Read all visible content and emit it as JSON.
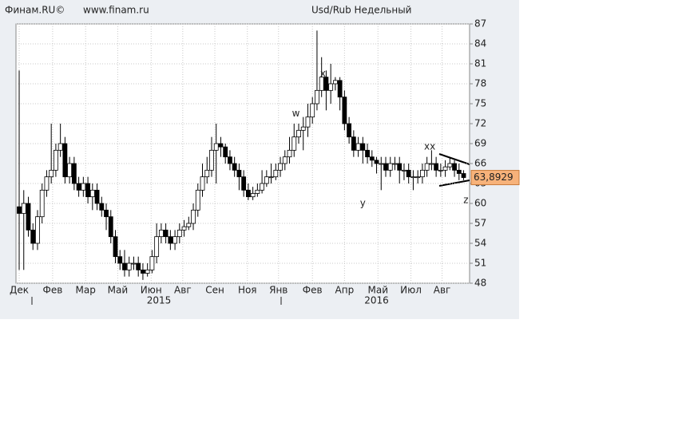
{
  "chart_data": {
    "type": "candlestick",
    "title": "Usd/Rub Недельный",
    "brand": "Финам.RU©",
    "site": "www.finam.ru",
    "series": [
      {
        "open": [
          59.5,
          58.5,
          60,
          56,
          54,
          58,
          62,
          64,
          65,
          68,
          69,
          64,
          66,
          63,
          62,
          63,
          61,
          62,
          60,
          59,
          58,
          55,
          52,
          51,
          50,
          51,
          51,
          50,
          49.5,
          50,
          52,
          55,
          56,
          55,
          54,
          55,
          56,
          56.5,
          57,
          59,
          62,
          64,
          65,
          68,
          69,
          68.5,
          67,
          66,
          65,
          64,
          62,
          61,
          61.5,
          62,
          63,
          64,
          64,
          65,
          66,
          67,
          68,
          70,
          71,
          71.5,
          73,
          75,
          77,
          79,
          77,
          78,
          78.5,
          76,
          72,
          70,
          68,
          69,
          68,
          67,
          66.5,
          66,
          66,
          65,
          66,
          66,
          65,
          65,
          64,
          64,
          64,
          65,
          66,
          66,
          65,
          65,
          65.5,
          66,
          65,
          64.5
        ],
        "high": [
          80,
          62,
          61,
          57,
          59,
          63,
          65,
          72,
          69,
          72,
          70,
          67,
          67,
          64,
          64,
          64,
          63,
          63,
          61,
          60,
          59,
          56,
          53,
          53,
          52,
          52,
          52,
          51,
          51,
          53,
          57,
          57,
          57,
          56,
          56,
          57,
          57.5,
          58,
          60,
          63,
          66,
          67,
          70,
          72,
          70,
          69,
          68,
          67,
          66,
          65,
          63,
          62.5,
          63,
          65,
          65,
          66,
          66,
          67,
          68,
          70,
          72,
          72,
          73,
          75,
          76,
          86,
          82,
          80,
          81,
          79,
          79,
          77,
          73,
          71,
          70,
          70,
          69,
          68,
          67,
          67,
          67,
          67,
          67,
          67,
          66,
          66,
          65,
          65,
          66,
          67,
          68,
          67,
          66,
          66.5,
          67,
          66.5,
          66,
          65
        ],
        "low": [
          50,
          50,
          55,
          53,
          53,
          57,
          61,
          63,
          64,
          67,
          63,
          63,
          62,
          61,
          61,
          60,
          59,
          59,
          58,
          56,
          54,
          51,
          50,
          49,
          49,
          50,
          49,
          48.5,
          49,
          49.5,
          51,
          54,
          54,
          53,
          53,
          54,
          55,
          56,
          56,
          58,
          61,
          63,
          64,
          63,
          67,
          66,
          65,
          64,
          62,
          61,
          60.5,
          60.5,
          61,
          61.5,
          62.5,
          63,
          63.5,
          64,
          65,
          66,
          67,
          69,
          68,
          70,
          72,
          74,
          76,
          74,
          75,
          77,
          74,
          71,
          69,
          67,
          67,
          66,
          66,
          65.5,
          64.5,
          62,
          64,
          64,
          65,
          63,
          63.5,
          63,
          62,
          63,
          63,
          64,
          65,
          64,
          64,
          64,
          65,
          64,
          63.5,
          63.5
        ],
        "close": [
          58.5,
          60,
          56,
          54,
          58,
          62,
          64,
          65,
          68,
          69,
          64,
          66,
          63,
          62,
          63,
          61,
          62,
          60,
          59,
          58,
          55,
          52,
          51,
          50,
          51,
          51,
          50,
          49.5,
          50,
          52,
          55,
          56,
          55,
          54,
          55,
          56,
          56.5,
          57,
          59,
          62,
          64,
          65,
          68,
          69,
          68.5,
          67,
          66,
          65,
          64,
          62,
          61,
          61.5,
          62,
          63,
          64,
          64,
          65,
          66,
          67,
          68,
          70,
          71,
          71.5,
          73,
          75,
          77,
          79,
          77,
          78,
          78.5,
          76,
          72,
          70,
          68,
          69,
          68,
          67,
          66.5,
          66,
          66,
          65,
          66,
          66,
          65,
          65,
          64,
          64,
          64,
          65,
          66,
          66,
          65,
          65,
          65.5,
          66,
          65,
          64.5,
          63.8929
        ]
      }
    ],
    "last_price": {
      "value": 63.8929,
      "label": "63,8929"
    },
    "xlim": [
      -0.7,
      98.3
    ],
    "xticks": [
      {
        "value": 0,
        "label": "Дек"
      },
      {
        "value": 7.3,
        "label": "Фев"
      },
      {
        "value": 14.5,
        "label": "Мар"
      },
      {
        "value": 21.5,
        "label": "Май"
      },
      {
        "value": 28.8,
        "label": "Июн"
      },
      {
        "value": 35.7,
        "label": "Авг"
      },
      {
        "value": 42.7,
        "label": "Сен"
      },
      {
        "value": 49.8,
        "label": "Ноя"
      },
      {
        "value": 56.6,
        "label": "Янв"
      },
      {
        "value": 64,
        "label": "Фев"
      },
      {
        "value": 71,
        "label": "Апр"
      },
      {
        "value": 78.3,
        "label": "Май"
      },
      {
        "value": 85.5,
        "label": "Июл"
      },
      {
        "value": 92.3,
        "label": "Авг"
      }
    ],
    "year_ticks": [
      {
        "value": 30.5,
        "label": "2015"
      },
      {
        "value": 78,
        "label": "2016"
      }
    ],
    "ylim": [
      48,
      87
    ],
    "yticks": [
      48,
      51,
      54,
      57,
      60,
      63,
      66,
      69,
      72,
      75,
      78,
      81,
      84,
      87
    ],
    "annotations": [
      {
        "x": 60.4,
        "y": 73.5,
        "label": "w"
      },
      {
        "x": 66.3,
        "y": 79.5,
        "label": "x"
      },
      {
        "x": 75,
        "y": 60,
        "label": "y"
      },
      {
        "x": 89.6,
        "y": 68.5,
        "label": "xx"
      },
      {
        "x": 97.5,
        "y": 60.5,
        "label": "z"
      }
    ],
    "grid": true
  }
}
